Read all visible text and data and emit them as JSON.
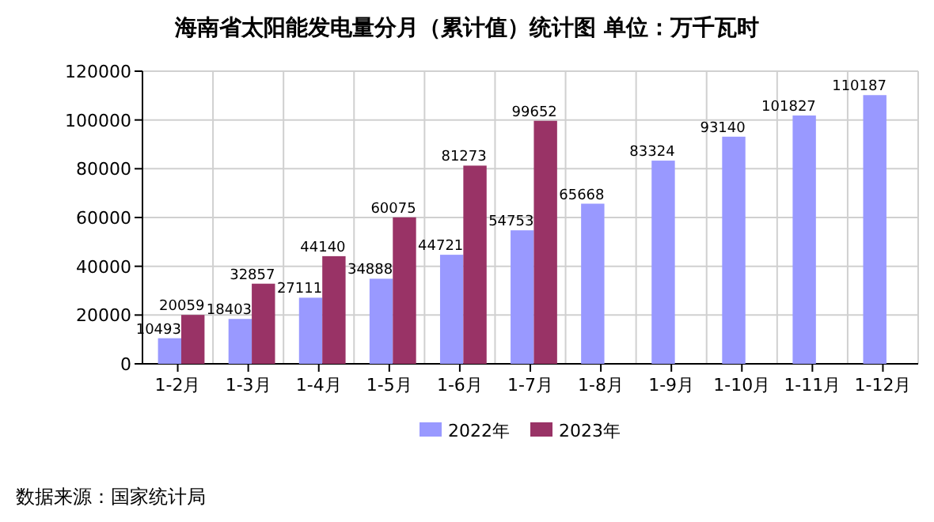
{
  "chart_data": {
    "type": "bar",
    "title": "海南省太阳能发电量分月（累计值）统计图 单位：万千瓦时",
    "categories": [
      "1-2月",
      "1-3月",
      "1-4月",
      "1-5月",
      "1-6月",
      "1-7月",
      "1-8月",
      "1-9月",
      "1-10月",
      "1-11月",
      "1-12月"
    ],
    "series": [
      {
        "name": "2022年",
        "color": "#9999ff",
        "values": [
          10493,
          18403,
          27111,
          34888,
          44721,
          54753,
          65668,
          83324,
          93140,
          101827,
          110187
        ]
      },
      {
        "name": "2023年",
        "color": "#993366",
        "values": [
          20059,
          32857,
          44140,
          60075,
          81273,
          99652,
          null,
          null,
          null,
          null,
          null
        ]
      }
    ],
    "ylim": [
      0,
      120000
    ],
    "yticks": [
      0,
      20000,
      40000,
      60000,
      80000,
      100000,
      120000
    ],
    "grid": true,
    "legend": "bottom",
    "data_labels": true,
    "annotations": [
      "数据来源：国家统计局"
    ]
  }
}
